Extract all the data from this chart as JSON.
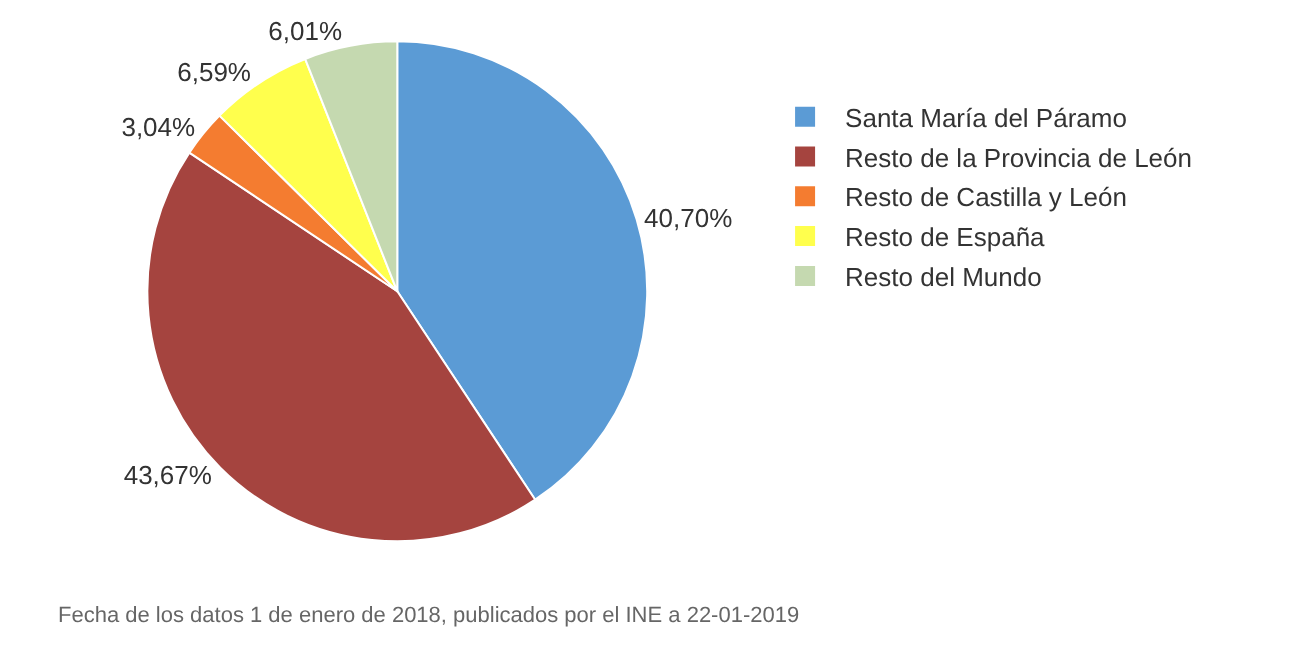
{
  "chart_data": {
    "type": "pie",
    "categories": [
      "Santa María del Páramo",
      "Resto de la Provincia de León",
      "Resto de Castilla y León",
      "Resto de España",
      "Resto del Mundo"
    ],
    "values": [
      40.7,
      43.67,
      3.04,
      6.59,
      6.01
    ],
    "value_labels": [
      "40,70%",
      "43,67%",
      "3,04%",
      "6,59%",
      "6,01%"
    ],
    "colors": [
      "#5b9bd5",
      "#a5443f",
      "#f47c30",
      "#ffff4d",
      "#c5d9b0"
    ],
    "legend": "right",
    "annotations": [
      "Fecha de los datos 1 de enero de 2018, publicados por el INE a 22-01-2019"
    ]
  }
}
